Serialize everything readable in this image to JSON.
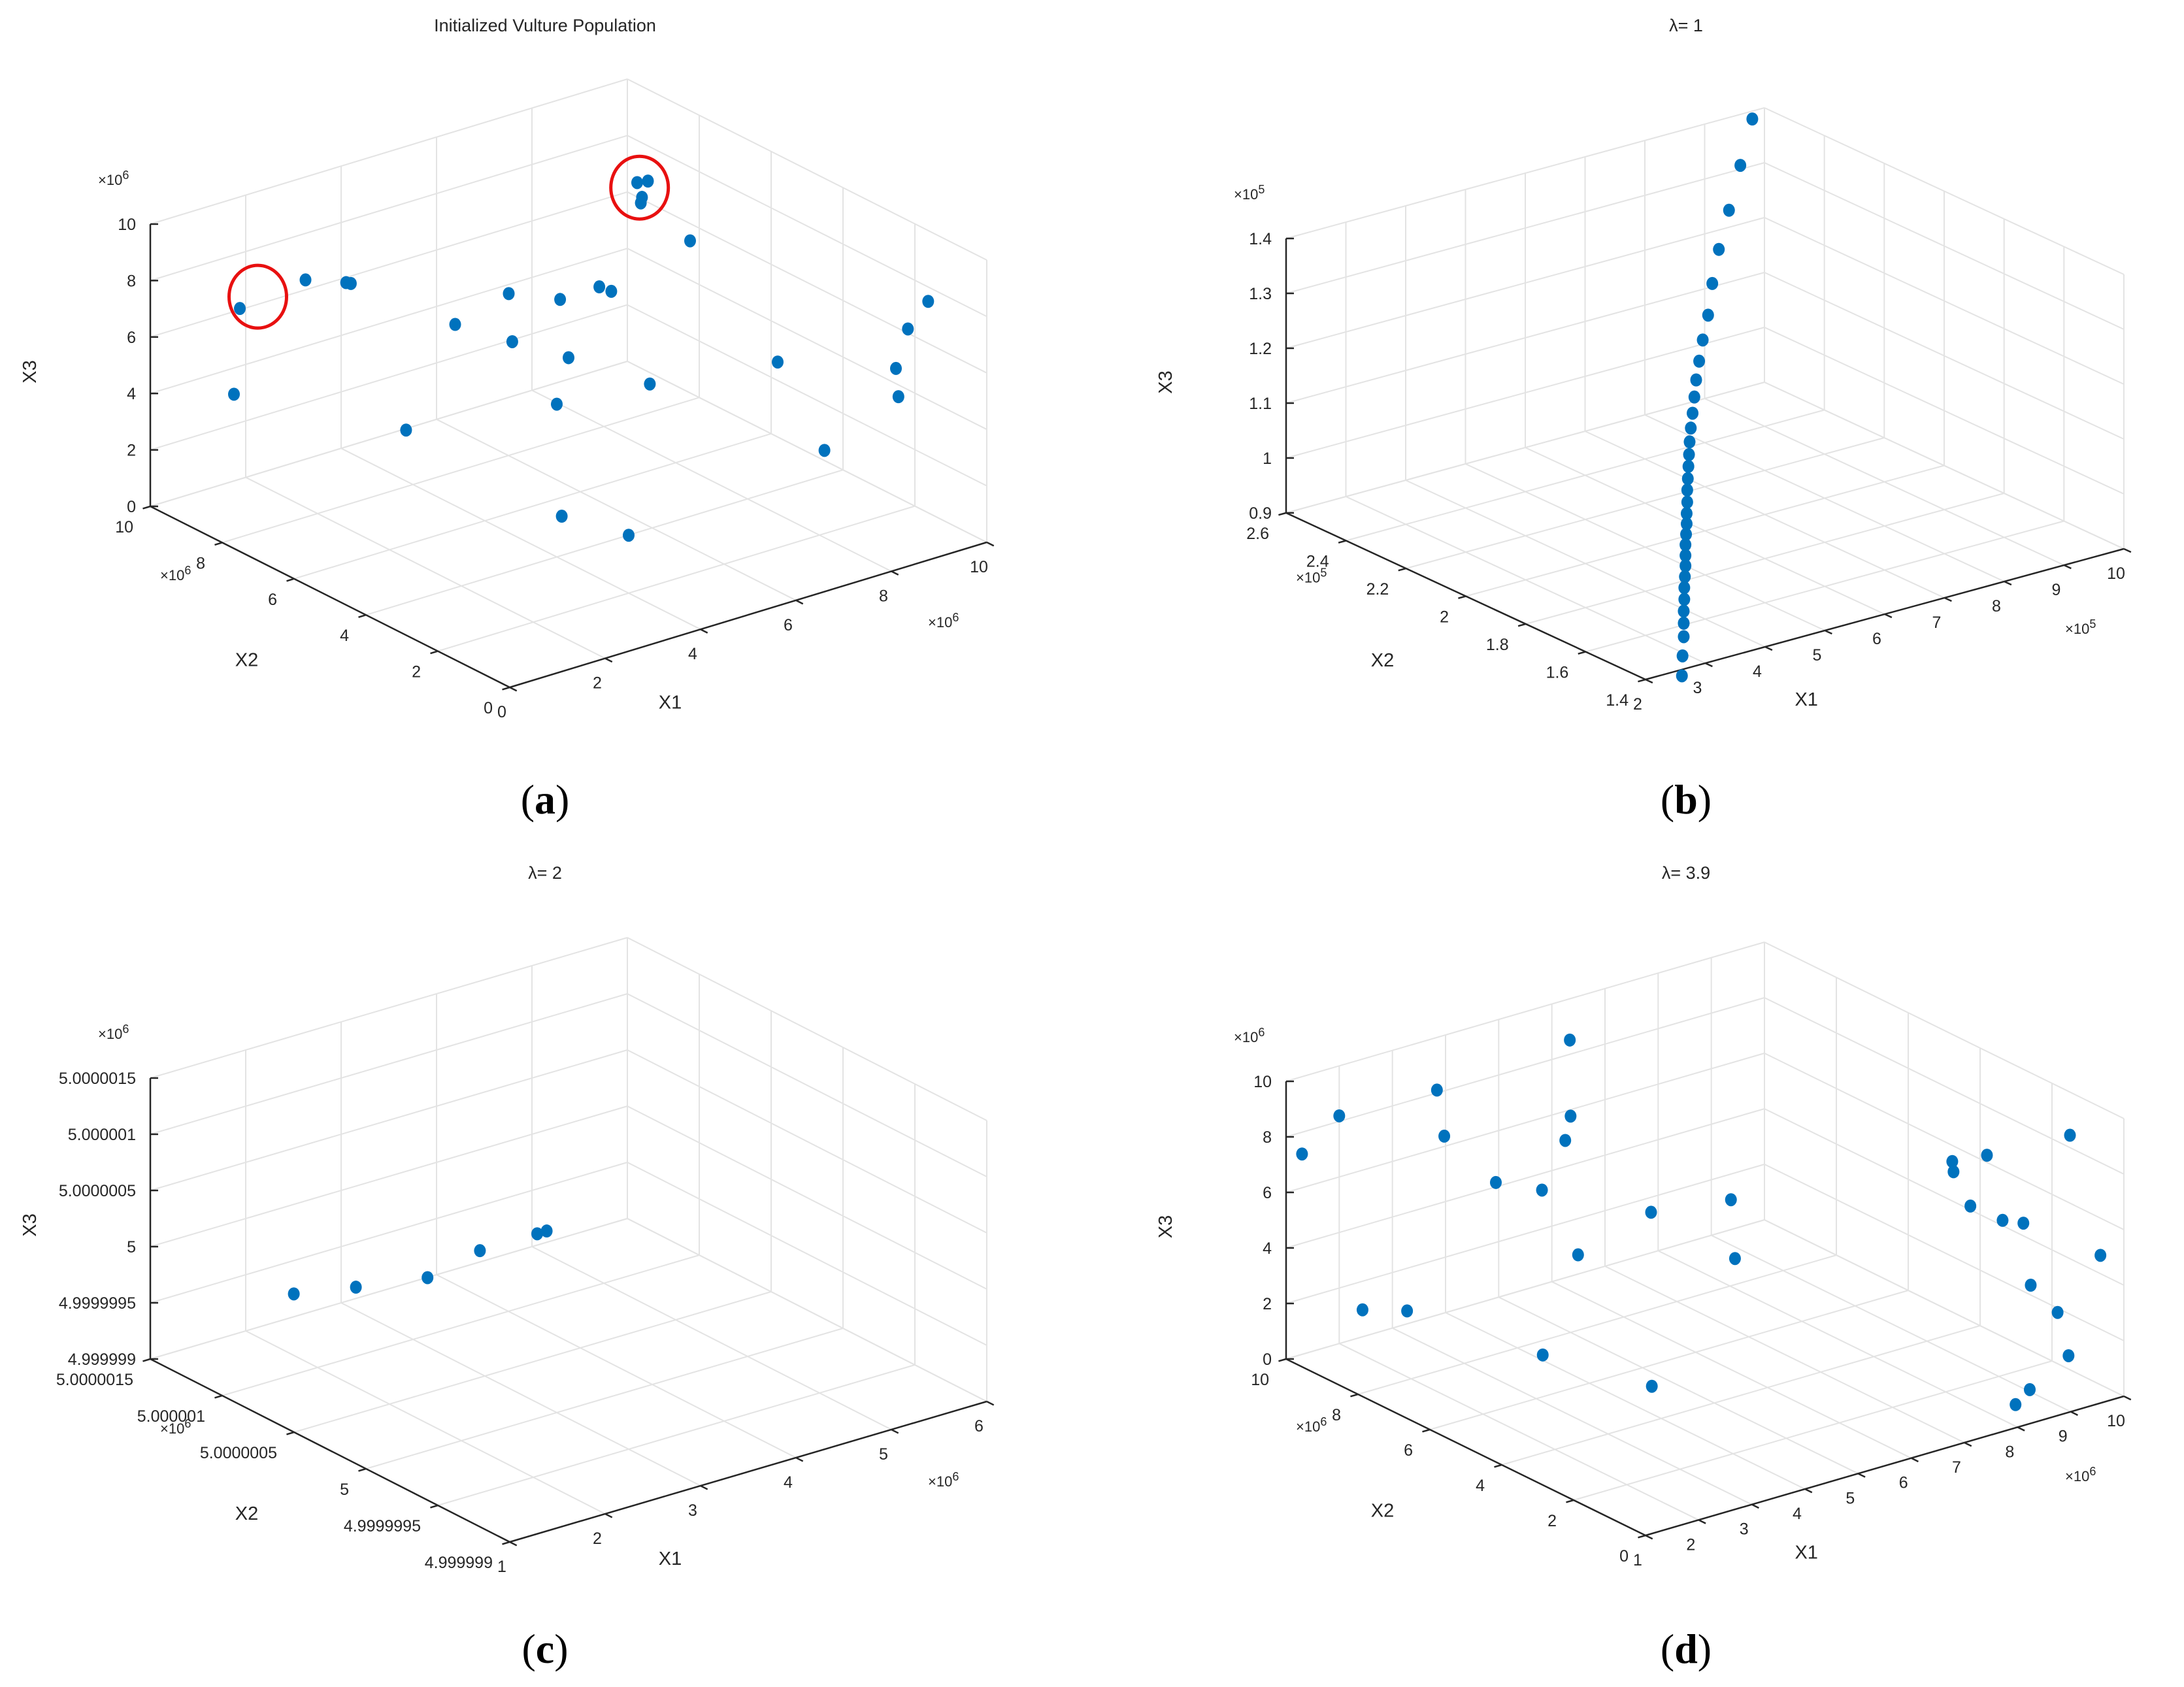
{
  "figure": {
    "panels": [
      {
        "id": "a",
        "caption_letter": "a",
        "colors": {
          "marker": "#0072BD",
          "highlight": "#e81010"
        },
        "chart_data": {
          "type": "scatter",
          "title": "Initialized Vulture Population",
          "xlabel": "X1",
          "ylabel": "X2",
          "zlabel": "X3",
          "x_exponent": "×10^6",
          "y_exponent": "×10^6",
          "z_exponent": "×10^6",
          "xlim": [
            0,
            10
          ],
          "ylim": [
            0,
            10
          ],
          "zlim": [
            0,
            10
          ],
          "xticks": [
            0,
            2,
            4,
            6,
            8,
            10
          ],
          "yticks": [
            0,
            2,
            4,
            6,
            8,
            10
          ],
          "zticks": [
            0,
            2,
            4,
            6,
            8,
            10
          ],
          "xtick_labels": [
            "0",
            "2",
            "4",
            "6",
            "8",
            "10"
          ],
          "ytick_labels": [
            "0",
            "2",
            "4",
            "6",
            "8",
            "10"
          ],
          "ztick_labels": [
            "0",
            "2",
            "4",
            "6",
            "8",
            "10"
          ],
          "points": [
            [
              1.5,
              9.5,
              8.0
            ],
            [
              2.5,
              9.0,
              9.0
            ],
            [
              3.2,
              8.8,
              8.6
            ],
            [
              3.3,
              8.8,
              8.5
            ],
            [
              1.0,
              9.0,
              5.0
            ],
            [
              3.0,
              5.5,
              9.5
            ],
            [
              4.5,
              6.0,
              9.5
            ],
            [
              5.2,
              5.5,
              9.2
            ],
            [
              9.0,
              8.4,
              9.6
            ],
            [
              9.0,
              8.1,
              9.9
            ],
            [
              8.8,
              8.0,
              9.4
            ],
            [
              8.7,
              7.9,
              9.3
            ],
            [
              8.0,
              5.6,
              9.9
            ],
            [
              6.7,
              6.4,
              8.1
            ],
            [
              6.8,
              6.2,
              8.0
            ],
            [
              4.8,
              6.3,
              7.0
            ],
            [
              5.0,
              5.0,
              7.2
            ],
            [
              4.0,
              4.0,
              6.6
            ],
            [
              2.8,
              6.6,
              4.2
            ],
            [
              5.8,
              3.8,
              6.5
            ],
            [
              9.6,
              1.1,
              9.8
            ],
            [
              9.1,
              1.0,
              9.0
            ],
            [
              7.5,
              2.5,
              7.4
            ],
            [
              9.0,
              1.2,
              7.2
            ],
            [
              8.6,
              0.6,
              6.7
            ],
            [
              7.2,
              0.8,
              5.1
            ],
            [
              3.2,
              2.8,
              3.2
            ],
            [
              4.0,
              2.0,
              2.5
            ]
          ],
          "highlight_circles": [
            [
              1.5,
              9.0,
              8.9
            ],
            [
              8.9,
              8.2,
              9.6
            ]
          ]
        }
      },
      {
        "id": "b",
        "caption_letter": "b",
        "colors": {
          "marker": "#0072BD"
        },
        "chart_data": {
          "type": "scatter",
          "title": "λ= 1",
          "xlabel": "X1",
          "ylabel": "X2",
          "zlabel": "X3",
          "x_exponent": "×10^5",
          "y_exponent": "×10^5",
          "z_exponent": "×10^5",
          "xlim": [
            2,
            10
          ],
          "ylim": [
            1.4,
            2.6
          ],
          "zlim": [
            0.9,
            1.4
          ],
          "xticks": [
            2,
            3,
            4,
            5,
            6,
            7,
            8,
            9,
            10
          ],
          "yticks": [
            1.4,
            1.6,
            1.8,
            2,
            2.2,
            2.4,
            2.6
          ],
          "zticks": [
            0.9,
            1,
            1.1,
            1.2,
            1.3,
            1.4
          ],
          "xtick_labels": [
            "2",
            "3",
            "4",
            "5",
            "6",
            "7",
            "8",
            "9",
            "10"
          ],
          "ytick_labels": [
            "1.4",
            "1.6",
            "1.8",
            "2",
            "2.2",
            "2.4",
            "2.6"
          ],
          "ztick_labels": [
            "0.9",
            "1",
            "1.1",
            "1.2",
            "1.3",
            "1.4"
          ],
          "points": [
            [
              3.06,
              1.49,
              0.842
            ],
            [
              3.12,
              1.5,
              0.881
            ],
            [
              3.19,
              1.51,
              0.918
            ],
            [
              3.24,
              1.52,
              0.943
            ],
            [
              3.29,
              1.53,
              0.965
            ],
            [
              3.35,
              1.54,
              0.986
            ],
            [
              3.4,
              1.55,
              1.007
            ],
            [
              3.46,
              1.56,
              1.026
            ],
            [
              3.52,
              1.57,
              1.045
            ],
            [
              3.57,
              1.58,
              1.063
            ],
            [
              3.62,
              1.59,
              1.082
            ],
            [
              3.68,
              1.6,
              1.1
            ],
            [
              3.74,
              1.61,
              1.118
            ],
            [
              3.79,
              1.62,
              1.136
            ],
            [
              3.85,
              1.63,
              1.156
            ],
            [
              3.9,
              1.64,
              1.178
            ],
            [
              3.96,
              1.65,
              1.198
            ],
            [
              4.02,
              1.66,
              1.22
            ],
            [
              4.08,
              1.67,
              1.241
            ],
            [
              4.14,
              1.68,
              1.264
            ],
            [
              4.21,
              1.69,
              1.289
            ],
            [
              4.29,
              1.7,
              1.316
            ],
            [
              4.37,
              1.71,
              1.346
            ],
            [
              4.45,
              1.72,
              1.378
            ],
            [
              4.55,
              1.73,
              1.413
            ],
            [
              4.66,
              1.74,
              1.453
            ],
            [
              4.8,
              1.75,
              1.5
            ],
            [
              4.97,
              1.77,
              1.558
            ],
            [
              5.18,
              1.79,
              1.62
            ],
            [
              5.45,
              1.81,
              1.691
            ],
            [
              5.74,
              1.83,
              1.774
            ],
            [
              6.04,
              1.85,
              1.86
            ]
          ]
        }
      },
      {
        "id": "c",
        "caption_letter": "c",
        "colors": {
          "marker": "#0072BD"
        },
        "chart_data": {
          "type": "scatter",
          "title": "λ= 2",
          "xlabel": "X1",
          "ylabel": "X2",
          "zlabel": "X3",
          "x_exponent": "×10^6",
          "y_exponent": "×10^6",
          "z_exponent": "×10^6",
          "xlim": [
            1,
            6
          ],
          "ylim": [
            4.999999,
            5.0000015
          ],
          "zlim": [
            4.999999,
            5.0000015
          ],
          "xticks": [
            1,
            2,
            3,
            4,
            5,
            6
          ],
          "yticks": [
            4.999999,
            4.9999995,
            5,
            5.0000005,
            5.000001,
            5.0000015
          ],
          "zticks": [
            4.999999,
            4.9999995,
            5,
            5.0000005,
            5.000001,
            5.0000015
          ],
          "xtick_labels": [
            "1",
            "2",
            "3",
            "4",
            "5",
            "6"
          ],
          "ytick_labels": [
            "4.999999",
            "4.9999995",
            "5",
            "5.0000005",
            "5.000001",
            "5.0000015"
          ],
          "ztick_labels": [
            "4.999999",
            "4.9999995",
            "5",
            "5.0000005",
            "5.000001",
            "5.0000015"
          ],
          "points": [
            [
              1.6,
              5.0000009,
              5.0
            ],
            [
              2.1,
              5.0000008,
              5.0
            ],
            [
              2.7,
              5.0000007,
              5.0
            ],
            [
              3.4,
              5.0000008,
              5.0
            ],
            [
              4.0,
              5.0000008,
              5.0
            ],
            [
              4.1,
              5.0000008,
              5.0
            ]
          ]
        }
      },
      {
        "id": "d",
        "caption_letter": "d",
        "colors": {
          "marker": "#0072BD"
        },
        "chart_data": {
          "type": "scatter",
          "title": "λ= 3.9",
          "xlabel": "X1",
          "ylabel": "X2",
          "zlabel": "X3",
          "x_exponent": "×10^6",
          "y_exponent": "×10^6",
          "z_exponent": "×10^6",
          "xlim": [
            1,
            10
          ],
          "ylim": [
            0,
            10
          ],
          "zlim": [
            0,
            10
          ],
          "xticks": [
            1,
            2,
            3,
            4,
            5,
            6,
            7,
            8,
            9,
            10
          ],
          "yticks": [
            0,
            2,
            4,
            6,
            8,
            10
          ],
          "zticks": [
            0,
            2,
            4,
            6,
            8,
            10
          ],
          "xtick_labels": [
            "1",
            "2",
            "3",
            "4",
            "5",
            "6",
            "7",
            "8",
            "9",
            "10"
          ],
          "ytick_labels": [
            "0",
            "2",
            "4",
            "6",
            "8",
            "10"
          ],
          "ztick_labels": [
            "0",
            "2",
            "4",
            "6",
            "8",
            "10"
          ],
          "points": [
            [
              1.3,
              10.0,
              8.8
            ],
            [
              2.0,
              10.0,
              10.0
            ],
            [
              3.5,
              9.5,
              10.5
            ],
            [
              6.0,
              9.5,
              11.0
            ],
            [
              3.3,
              9.0,
              9.0
            ],
            [
              5.0,
              8.0,
              9.5
            ],
            [
              4.9,
              8.0,
              8.5
            ],
            [
              4.0,
              8.6,
              6.8
            ],
            [
              4.8,
              8.5,
              6.0
            ],
            [
              5.5,
              6.5,
              6.1
            ],
            [
              6.8,
              6.2,
              6.0
            ],
            [
              6.2,
              5.2,
              4.6
            ],
            [
              4.6,
              7.2,
              4.3
            ],
            [
              2.1,
              9.5,
              1.8
            ],
            [
              2.6,
              9.0,
              1.8
            ],
            [
              3.8,
              7.0,
              0.6
            ],
            [
              4.5,
              5.0,
              0.3
            ],
            [
              8.1,
              1.0,
              11.1
            ],
            [
              8.8,
              3.0,
              8.8
            ],
            [
              8.6,
              2.2,
              7.6
            ],
            [
              8.8,
              1.6,
              7.3
            ],
            [
              9.5,
              4.0,
              7.1
            ],
            [
              9.8,
              2.5,
              5.8
            ],
            [
              9.6,
              2.0,
              3.6
            ],
            [
              9.7,
              1.4,
              2.8
            ],
            [
              9.5,
              0.8,
              1.5
            ],
            [
              8.5,
              0.4,
              1.0
            ],
            [
              8.3,
              0.5,
              0.4
            ],
            [
              10.0,
              1.5,
              10.3
            ],
            [
              10.1,
              0.8,
              5.5
            ]
          ]
        }
      }
    ]
  }
}
